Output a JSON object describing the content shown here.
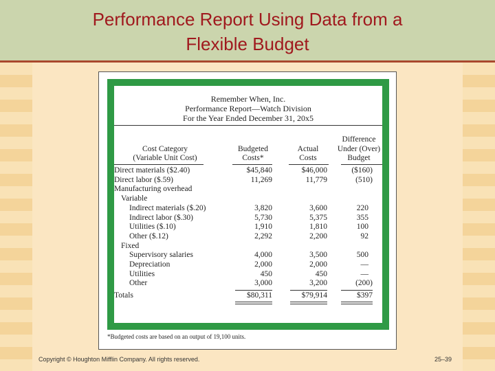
{
  "slide": {
    "title_line1": "Performance Report Using Data from a",
    "title_line2": "Flexible Budget",
    "copyright": "Copyright © Houghton Mifflin Company. All rights reserved.",
    "page_number": "25–39"
  },
  "report": {
    "company": "Remember When, Inc.",
    "name": "Performance Report—Watch Division",
    "period": "For the Year Ended December 31, 20x5",
    "headers": {
      "cat1": "Cost Category",
      "cat2": "(Variable Unit Cost)",
      "bud1": "Budgeted",
      "bud2": "Costs*",
      "act1": "Actual",
      "act2": "Costs",
      "diff1": "Difference",
      "diff2": "Under (Over)",
      "diff3": "Budget"
    },
    "rows": [
      {
        "label": "Direct materials ($2.40)",
        "budgeted": "$45,840",
        "actual": "$46,000",
        "difference": "($160)"
      },
      {
        "label": "Direct labor ($.59)",
        "budgeted": "11,269",
        "actual": "11,779",
        "difference": "(510)"
      },
      {
        "label": "Manufacturing overhead",
        "budgeted": "",
        "actual": "",
        "difference": ""
      },
      {
        "label": "Variable",
        "budgeted": "",
        "actual": "",
        "difference": ""
      },
      {
        "label": "Indirect materials ($.20)",
        "budgeted": "3,820",
        "actual": "3,600",
        "difference": "220"
      },
      {
        "label": "Indirect labor ($.30)",
        "budgeted": "5,730",
        "actual": "5,375",
        "difference": "355"
      },
      {
        "label": "Utilities ($.10)",
        "budgeted": "1,910",
        "actual": "1,810",
        "difference": "100"
      },
      {
        "label": "Other ($.12)",
        "budgeted": "2,292",
        "actual": "2,200",
        "difference": "92"
      },
      {
        "label": "Fixed",
        "budgeted": "",
        "actual": "",
        "difference": ""
      },
      {
        "label": "Supervisory salaries",
        "budgeted": "4,000",
        "actual": "3,500",
        "difference": "500"
      },
      {
        "label": "Depreciation",
        "budgeted": "2,000",
        "actual": "2,000",
        "difference": "—"
      },
      {
        "label": "Utilities",
        "budgeted": "450",
        "actual": "450",
        "difference": "—"
      },
      {
        "label": "Other",
        "budgeted": "3,000",
        "actual": "3,200",
        "difference": "(200)"
      },
      {
        "label": "Totals",
        "budgeted": "$80,311",
        "actual": "$79,914",
        "difference": "$397"
      }
    ],
    "footnote": "*Budgeted costs are based on an output of 19,100 units."
  }
}
